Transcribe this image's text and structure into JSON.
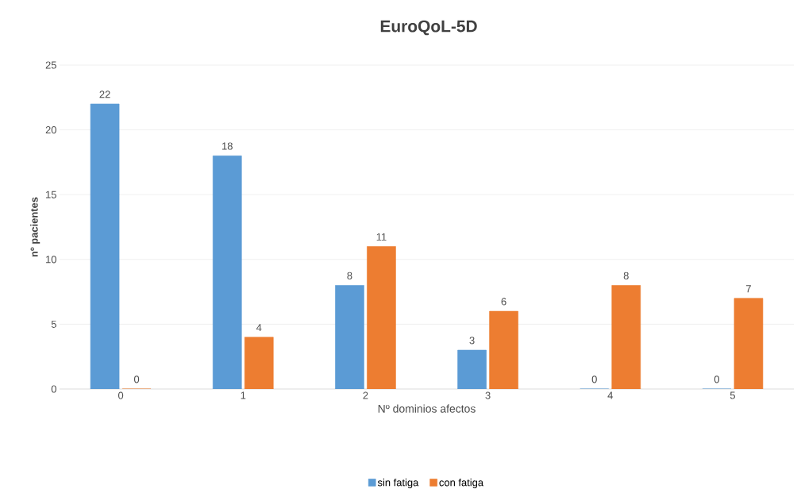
{
  "chart_data": {
    "type": "bar",
    "title": "EuroQoL-5D",
    "xlabel": "Nº dominios afectos",
    "ylabel": "nº pacientes",
    "categories": [
      "0",
      "1",
      "2",
      "3",
      "4",
      "5"
    ],
    "series": [
      {
        "name": "sin fatiga",
        "color": "#5b9bd5",
        "values": [
          22,
          18,
          8,
          3,
          0,
          0
        ]
      },
      {
        "name": "con fatiga",
        "color": "#ed7d31",
        "values": [
          0,
          4,
          11,
          6,
          8,
          7
        ]
      }
    ],
    "ylim": [
      0,
      25
    ],
    "yticks": [
      0,
      5,
      10,
      15,
      20,
      25
    ],
    "grid": "y",
    "legend": "bottom",
    "data_labels": true
  }
}
